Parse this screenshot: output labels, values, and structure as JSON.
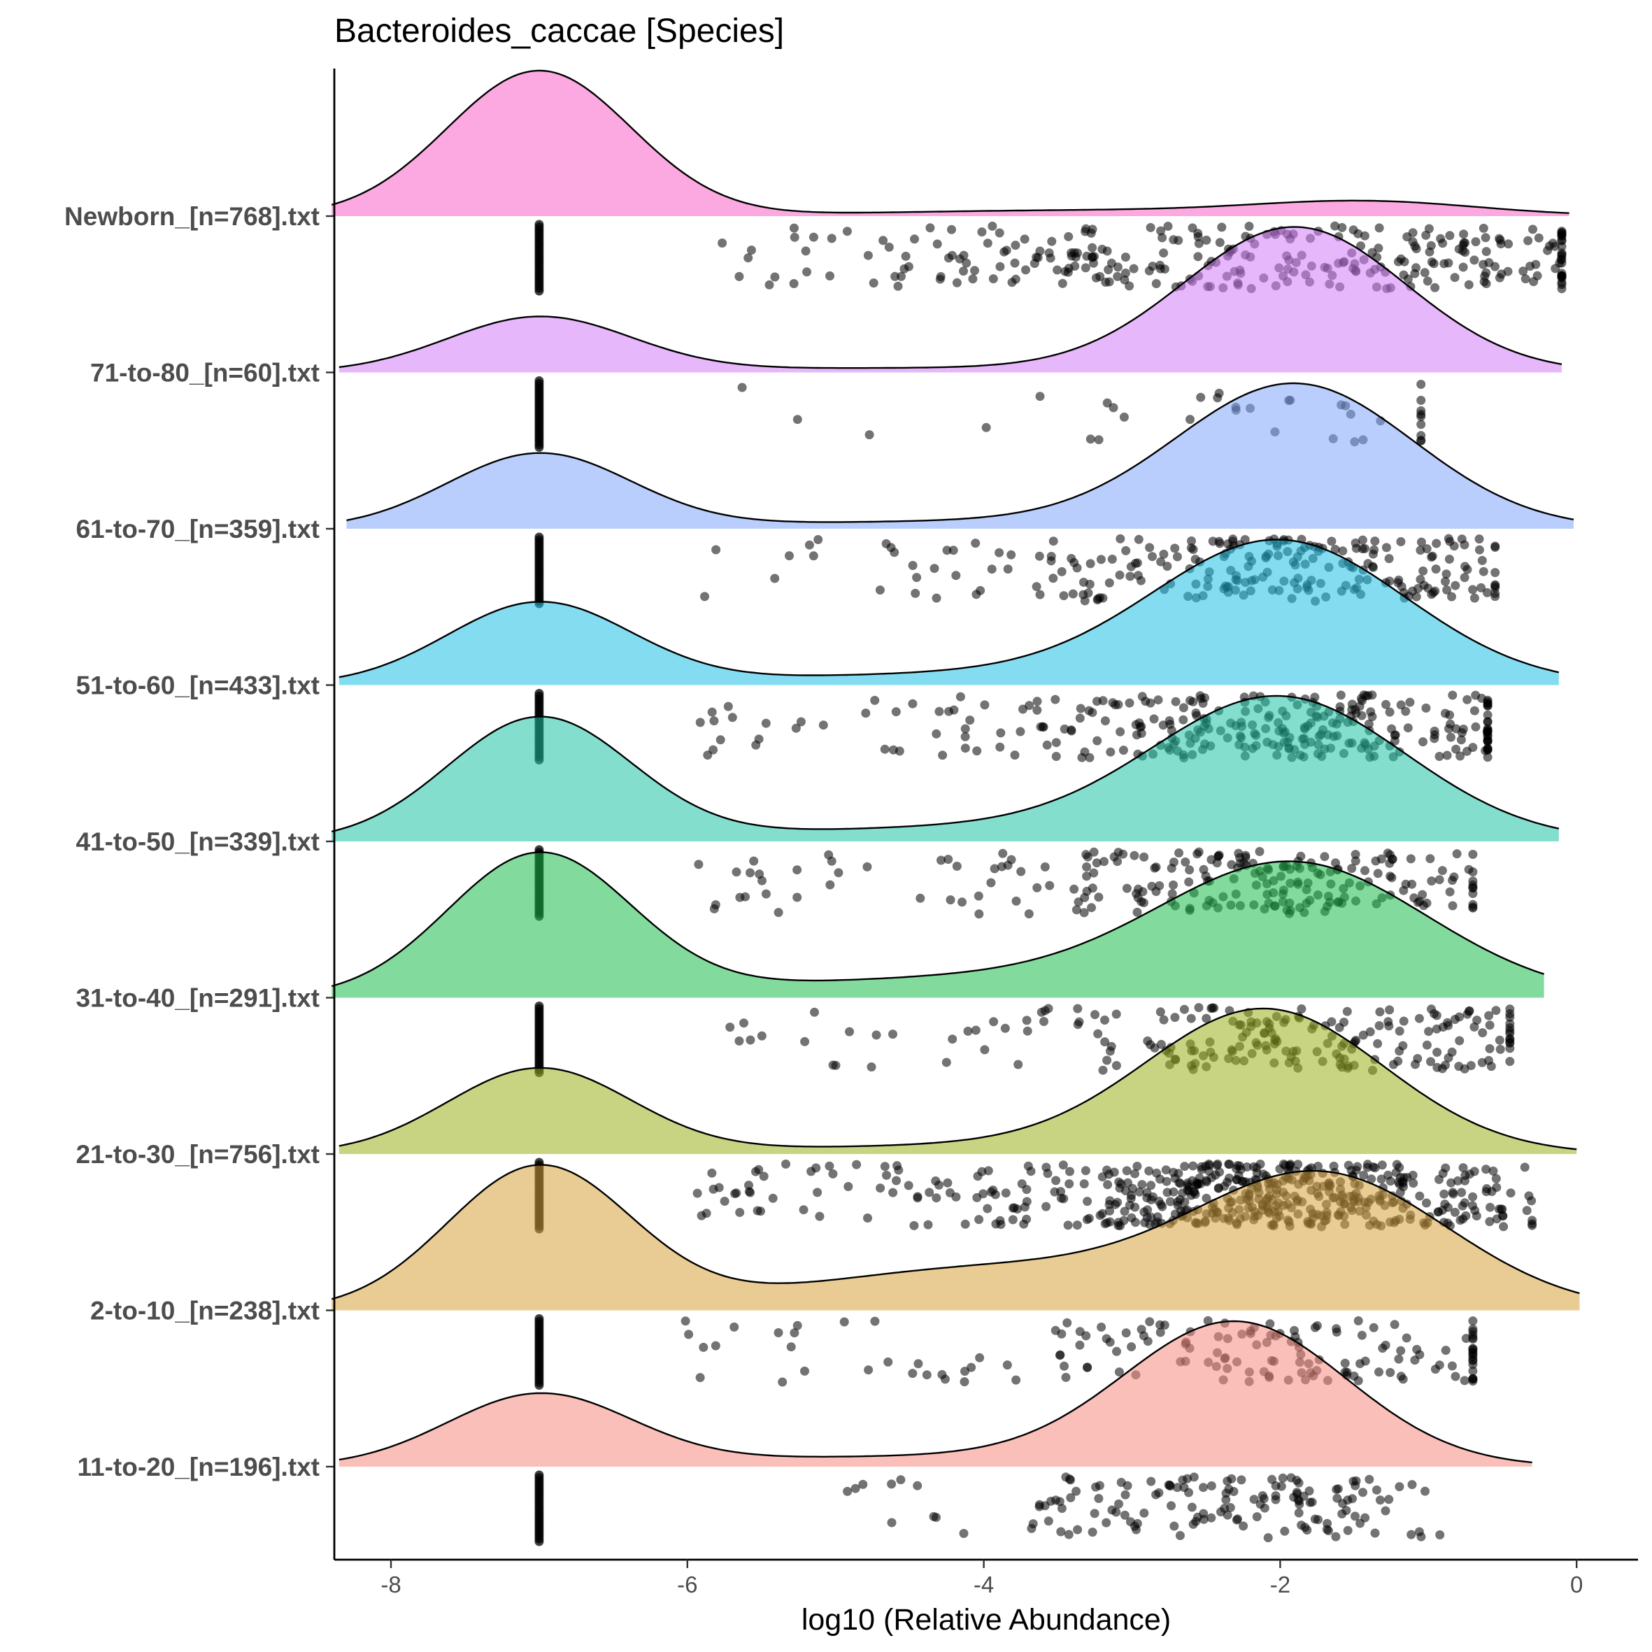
{
  "chart_data": {
    "type": "ridgeline-raincloud",
    "title": "Bacteroides_caccae [Species]",
    "xlabel": "log10 (Relative Abundance)",
    "ylabel": "",
    "xlim": [
      -8.4,
      0.1
    ],
    "xticks": [
      -8,
      -6,
      -4,
      -2,
      0
    ],
    "xtick_labels": [
      "-8",
      "-6",
      "-4",
      "-2",
      "0"
    ],
    "grid": false,
    "legend": "none",
    "groups": [
      {
        "label": "Newborn_[n=768].txt",
        "color": "#F763C6",
        "x_range": [
          -8.4,
          -0.05
        ],
        "zero_value": -7.0,
        "components": [
          {
            "mean": -7.0,
            "sd": 0.62,
            "weight": 1.0
          },
          {
            "mean": -1.4,
            "sd": 0.75,
            "weight": 0.09
          },
          {
            "mean": -3.3,
            "sd": 1.4,
            "weight": 0.04
          }
        ],
        "points": {
          "count": 300,
          "range": [
            -5.8,
            -0.1
          ],
          "center": -1.9,
          "spread": 1.6
        }
      },
      {
        "label": "71-to-80_[n=60].txt",
        "color": "#D37CF8",
        "x_range": [
          -8.35,
          -0.1
        ],
        "zero_value": -7.0,
        "components": [
          {
            "mean": -7.0,
            "sd": 0.62,
            "weight": 0.38
          },
          {
            "mean": -1.9,
            "sd": 0.75,
            "weight": 1.0
          },
          {
            "mean": -4.5,
            "sd": 1.5,
            "weight": 0.03
          }
        ],
        "points": {
          "count": 36,
          "range": [
            -5.95,
            -1.05
          ],
          "center": -1.9,
          "spread": 1.1
        }
      },
      {
        "label": "61-to-70_[n=359].txt",
        "color": "#7FA6FC",
        "x_range": [
          -8.3,
          -0.02
        ],
        "zero_value": -7.0,
        "components": [
          {
            "mean": -7.0,
            "sd": 0.62,
            "weight": 0.52
          },
          {
            "mean": -1.9,
            "sd": 0.8,
            "weight": 1.0
          },
          {
            "mean": -4.2,
            "sd": 1.5,
            "weight": 0.05
          }
        ],
        "points": {
          "count": 240,
          "range": [
            -5.9,
            -0.55
          ],
          "center": -1.9,
          "spread": 0.9
        }
      },
      {
        "label": "51-to-60_[n=433].txt",
        "color": "#1FBFE6",
        "x_range": [
          -8.35,
          -0.12
        ],
        "zero_value": -7.0,
        "components": [
          {
            "mean": -7.0,
            "sd": 0.62,
            "weight": 0.58
          },
          {
            "mean": -2.0,
            "sd": 0.85,
            "weight": 1.0
          },
          {
            "mean": -4.0,
            "sd": 1.6,
            "weight": 0.08
          }
        ],
        "points": {
          "count": 300,
          "range": [
            -5.95,
            -0.6
          ],
          "center": -2.0,
          "spread": 0.95
        }
      },
      {
        "label": "41-to-50_[n=339].txt",
        "color": "#1FC3A6",
        "x_range": [
          -8.4,
          -0.12
        ],
        "zero_value": -7.0,
        "components": [
          {
            "mean": -7.0,
            "sd": 0.62,
            "weight": 0.88
          },
          {
            "mean": -2.0,
            "sd": 0.85,
            "weight": 1.0
          },
          {
            "mean": -4.0,
            "sd": 1.6,
            "weight": 0.1
          }
        ],
        "points": {
          "count": 230,
          "range": [
            -5.95,
            -0.7
          ],
          "center": -2.0,
          "spread": 0.9
        }
      },
      {
        "label": "31-to-40_[n=291].txt",
        "color": "#1BBE4A",
        "x_range": [
          -8.4,
          -0.22
        ],
        "zero_value": -7.0,
        "components": [
          {
            "mean": -7.0,
            "sd": 0.62,
            "weight": 1.0
          },
          {
            "mean": -1.9,
            "sd": 0.9,
            "weight": 0.9
          },
          {
            "mean": -4.0,
            "sd": 1.6,
            "weight": 0.14
          }
        ],
        "points": {
          "count": 210,
          "range": [
            -5.85,
            -0.45
          ],
          "center": -2.0,
          "spread": 1.0
        }
      },
      {
        "label": "21-to-30_[n=756].txt",
        "color": "#9CB11E",
        "x_range": [
          -8.35,
          0.0
        ],
        "zero_value": -7.0,
        "components": [
          {
            "mean": -7.0,
            "sd": 0.62,
            "weight": 0.6
          },
          {
            "mean": -2.1,
            "sd": 0.8,
            "weight": 1.0
          },
          {
            "mean": -4.0,
            "sd": 1.5,
            "weight": 0.06
          }
        ],
        "points": {
          "count": 520,
          "range": [
            -5.95,
            -0.3
          ],
          "center": -2.1,
          "spread": 0.8
        }
      },
      {
        "label": "2-to-10_[n=238].txt",
        "color": "#D7A23A",
        "x_range": [
          -8.4,
          0.02
        ],
        "zero_value": -7.0,
        "components": [
          {
            "mean": -7.0,
            "sd": 0.62,
            "weight": 1.0
          },
          {
            "mean": -1.7,
            "sd": 0.85,
            "weight": 0.9
          },
          {
            "mean": -3.9,
            "sd": 1.3,
            "weight": 0.3
          }
        ],
        "points": {
          "count": 160,
          "range": [
            -6.05,
            -0.7
          ],
          "center": -1.9,
          "spread": 1.1
        }
      },
      {
        "label": "11-to-20_[n=196].txt",
        "color": "#F58B80",
        "x_range": [
          -8.35,
          -0.3
        ],
        "zero_value": -7.0,
        "components": [
          {
            "mean": -7.0,
            "sd": 0.62,
            "weight": 0.5
          },
          {
            "mean": -2.3,
            "sd": 0.75,
            "weight": 1.0
          },
          {
            "mean": -4.5,
            "sd": 1.5,
            "weight": 0.07
          }
        ],
        "points": {
          "count": 150,
          "range": [
            -4.95,
            -0.85
          ],
          "center": -2.3,
          "spread": 0.7
        }
      }
    ]
  }
}
